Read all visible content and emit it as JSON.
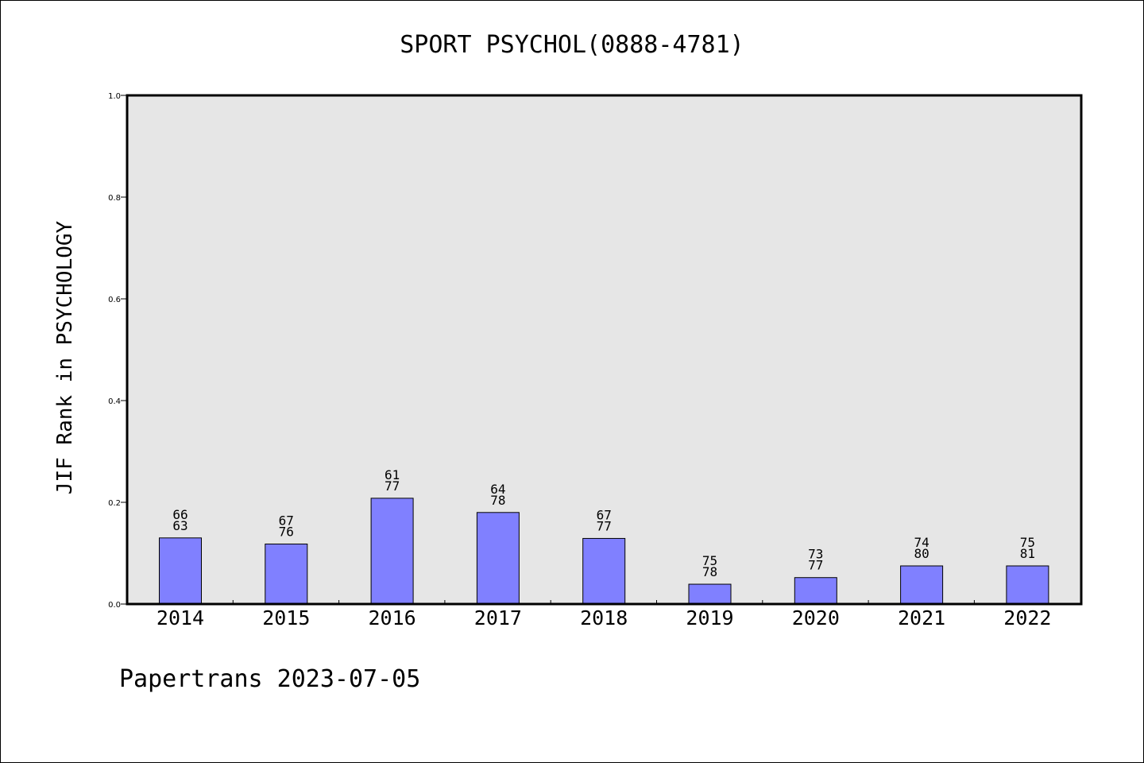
{
  "chart_data": {
    "type": "bar",
    "title": "SPORT PSYCHOL(0888-4781)",
    "ylabel": "JIF Rank in PSYCHOLOGY",
    "xlabel": "",
    "ylim": [
      0,
      1.0
    ],
    "yticks": [
      0.0,
      0.2,
      0.4,
      0.6,
      0.8,
      1.0
    ],
    "ytick_labels": [
      "0.0",
      "0.2",
      "0.4",
      "0.6",
      "0.8",
      "1.0"
    ],
    "categories": [
      "2014",
      "2015",
      "2016",
      "2017",
      "2018",
      "2019",
      "2020",
      "2021",
      "2022"
    ],
    "values": [
      0.13,
      0.118,
      0.208,
      0.18,
      0.129,
      0.039,
      0.052,
      0.075,
      0.075
    ],
    "labels_top": [
      "66",
      "67",
      "61",
      "64",
      "67",
      "75",
      "73",
      "74",
      "75"
    ],
    "labels_bottom": [
      "63",
      "76",
      "77",
      "78",
      "77",
      "78",
      "77",
      "80",
      "81"
    ],
    "bar_color": "#8080ff",
    "plot_background": "#e6e6e6",
    "grid": false,
    "footer": "Papertrans 2023-07-05"
  }
}
